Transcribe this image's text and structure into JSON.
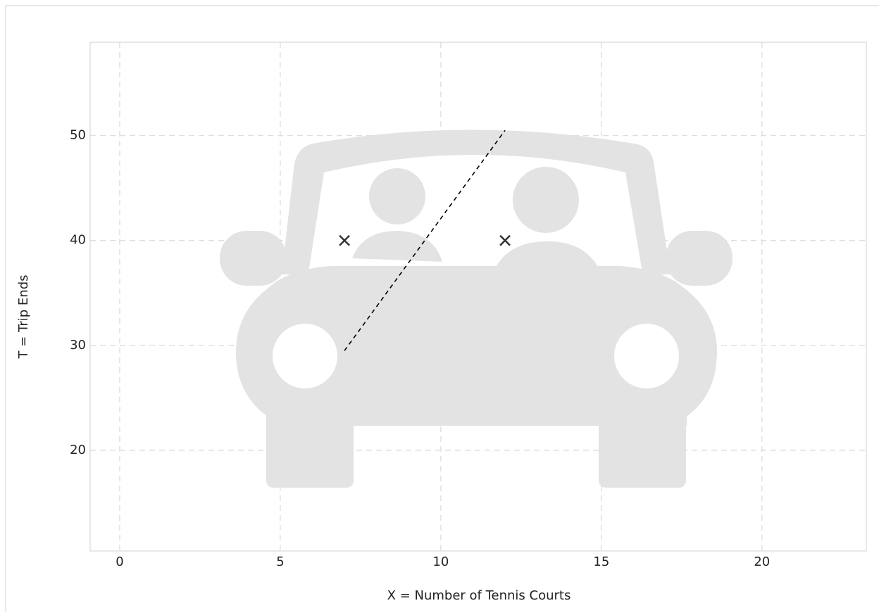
{
  "chart_data": {
    "type": "scatter",
    "xlabel": "X = Number of Tennis Courts",
    "ylabel": "T = Trip Ends",
    "xlim": [
      -0.92,
      23.25
    ],
    "ylim": [
      10.4,
      58.9
    ],
    "xticks": [
      0,
      5,
      10,
      15,
      20
    ],
    "yticks": [
      20,
      30,
      40,
      50
    ],
    "grid": true,
    "series": [
      {
        "mode": "markers",
        "marker": "x",
        "color": "#333333",
        "x": [
          7,
          12
        ],
        "values": [
          40,
          40
        ]
      },
      {
        "mode": "line",
        "dash": true,
        "color": "#000000",
        "x": [
          7,
          12
        ],
        "values": [
          29.5,
          50.5
        ]
      }
    ]
  }
}
